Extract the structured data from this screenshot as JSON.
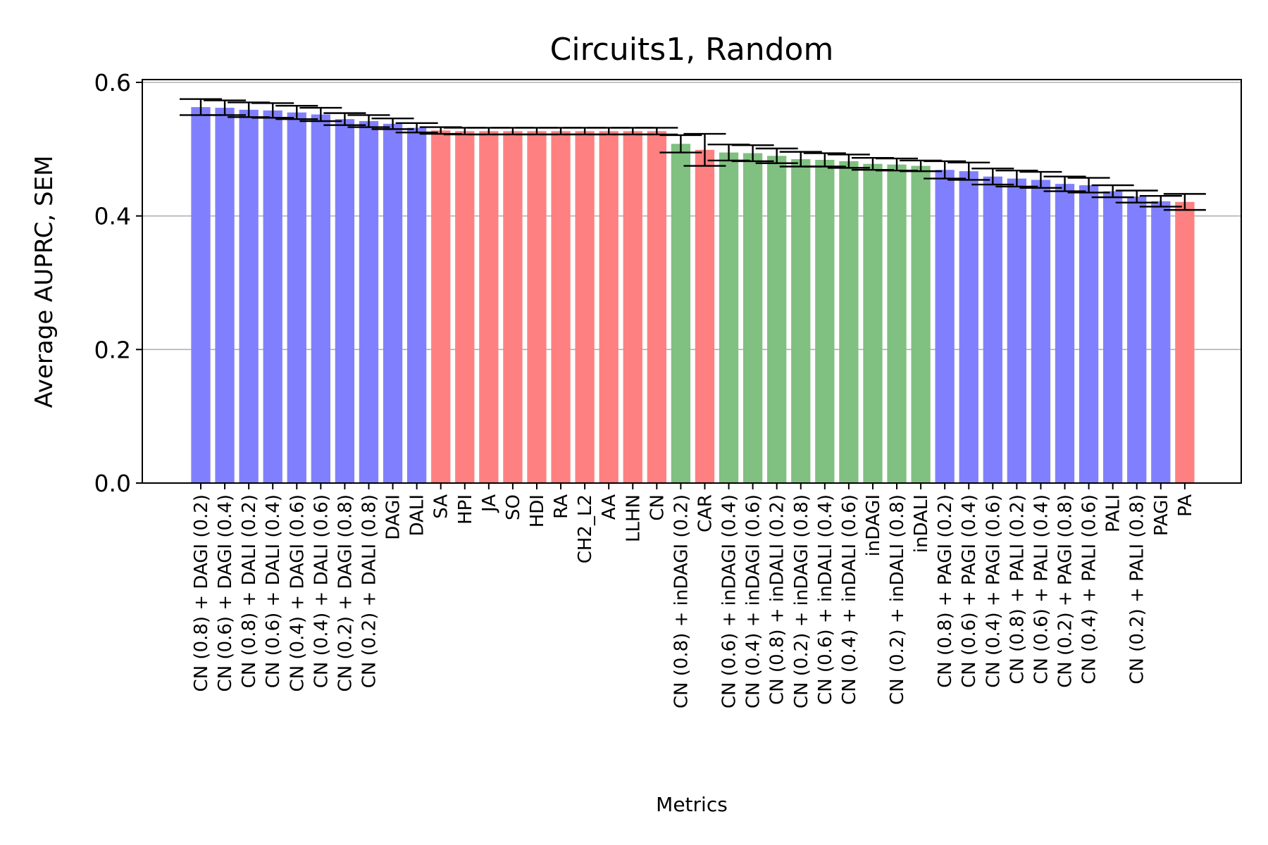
{
  "chart_data": {
    "type": "bar",
    "title": "Circuits1, Random",
    "xlabel": "Metrics",
    "ylabel": "Average AUPRC, SEM",
    "ylim": [
      0,
      0.6
    ],
    "yticks": [
      0.0,
      0.2,
      0.4,
      0.6
    ],
    "ytick_labels": [
      "0.0",
      "0.2",
      "0.4",
      "0.6"
    ],
    "grid": "y",
    "colors": {
      "blue": "#8080ff",
      "red": "#ff8080",
      "green": "#80c080"
    },
    "categories": [
      "CN (0.8) + DAGI (0.2)",
      "CN (0.6) + DAGI (0.4)",
      "CN (0.8) + DALI (0.2)",
      "CN (0.6) + DALI (0.4)",
      "CN (0.4) + DAGI (0.6)",
      "CN (0.4) + DALI (0.6)",
      "CN (0.2) + DAGI (0.8)",
      "CN (0.2) + DALI (0.8)",
      "DAGI",
      "DALI",
      "SA",
      "HPI",
      "JA",
      "SO",
      "HDI",
      "RA",
      "CH2_L2",
      "AA",
      "LLHN",
      "CN",
      "CN (0.8) + inDAGI (0.2)",
      "CAR",
      "CN (0.6) + inDAGI (0.4)",
      "CN (0.4) + inDAGI (0.6)",
      "CN (0.8) + inDALI (0.2)",
      "CN (0.2) + inDAGI (0.8)",
      "CN (0.6) + inDALI (0.4)",
      "CN (0.4) + inDALI (0.6)",
      "inDAGI",
      "CN (0.2) + inDALI (0.8)",
      "inDALI",
      "CN (0.8) + PAGI (0.2)",
      "CN (0.6) + PAGI (0.4)",
      "CN (0.4) + PAGI (0.6)",
      "CN (0.8) + PALI (0.2)",
      "CN (0.6) + PALI (0.4)",
      "CN (0.2) + PAGI (0.8)",
      "CN (0.4) + PALI (0.6)",
      "PALI",
      "CN (0.2) + PALI (0.8)",
      "PAGI",
      "PA"
    ],
    "values": [
      0.563,
      0.562,
      0.559,
      0.558,
      0.555,
      0.552,
      0.545,
      0.542,
      0.538,
      0.532,
      0.528,
      0.527,
      0.527,
      0.527,
      0.527,
      0.527,
      0.527,
      0.527,
      0.527,
      0.527,
      0.508,
      0.499,
      0.495,
      0.494,
      0.49,
      0.485,
      0.484,
      0.482,
      0.478,
      0.477,
      0.475,
      0.469,
      0.467,
      0.459,
      0.456,
      0.454,
      0.448,
      0.446,
      0.437,
      0.429,
      0.422,
      0.421
    ],
    "errors": [
      0.012,
      0.011,
      0.011,
      0.011,
      0.01,
      0.01,
      0.009,
      0.009,
      0.008,
      0.007,
      0.005,
      0.005,
      0.005,
      0.005,
      0.005,
      0.005,
      0.005,
      0.005,
      0.005,
      0.005,
      0.013,
      0.024,
      0.012,
      0.012,
      0.011,
      0.011,
      0.01,
      0.01,
      0.009,
      0.009,
      0.008,
      0.013,
      0.013,
      0.012,
      0.012,
      0.012,
      0.011,
      0.011,
      0.009,
      0.009,
      0.008,
      0.012
    ],
    "bar_colors": [
      "blue",
      "blue",
      "blue",
      "blue",
      "blue",
      "blue",
      "blue",
      "blue",
      "blue",
      "blue",
      "red",
      "red",
      "red",
      "red",
      "red",
      "red",
      "red",
      "red",
      "red",
      "red",
      "green",
      "red",
      "green",
      "green",
      "green",
      "green",
      "green",
      "green",
      "green",
      "green",
      "green",
      "blue",
      "blue",
      "blue",
      "blue",
      "blue",
      "blue",
      "blue",
      "blue",
      "blue",
      "blue",
      "red"
    ]
  }
}
